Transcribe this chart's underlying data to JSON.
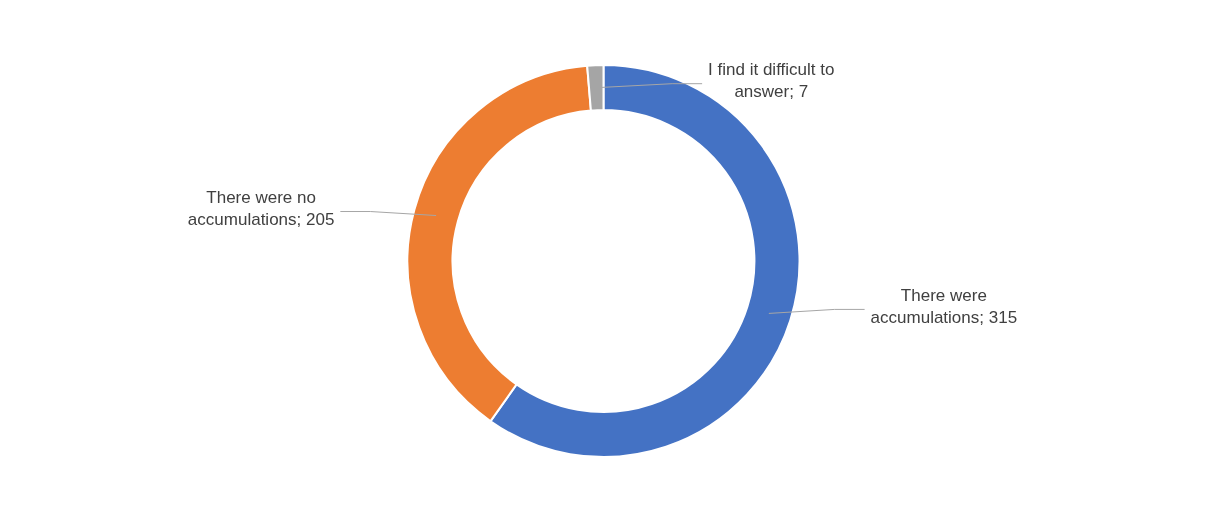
{
  "chart_data": {
    "type": "donut",
    "categories": [
      "There were accumulations",
      "There were no accumulations",
      "I find it difficult to answer"
    ],
    "values": [
      315,
      205,
      7
    ],
    "colors": [
      "#4472c4",
      "#ed7d31",
      "#a5a5a5"
    ],
    "value_labels": [
      "; 315",
      "; 205",
      "; 7"
    ],
    "legend": false
  }
}
